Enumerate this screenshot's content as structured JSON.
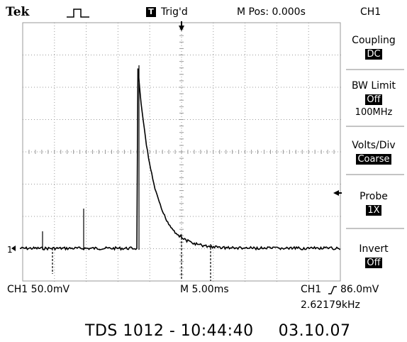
{
  "header": {
    "brand": "Tek",
    "pulse_icon": "single-pulse-icon",
    "trigger_status_icon": "trigger-square-icon",
    "trigger_status_icon_text": "T",
    "trigger_status": "Trig'd",
    "m_pos": "M Pos: 0.000s",
    "channel": "CH1"
  },
  "menu": {
    "coupling_label": "Coupling",
    "coupling_value": "DC",
    "bw_limit_label": "BW Limit",
    "bw_limit_value": "Off",
    "bw_limit_freq": "100MHz",
    "volts_div_label": "Volts/Div",
    "volts_div_value": "Coarse",
    "probe_label": "Probe",
    "probe_value": "1X",
    "invert_label": "Invert",
    "invert_value": "Off"
  },
  "readout": {
    "ch1_scale": "CH1  50.0mV",
    "timebase": "M 5.00ms",
    "trigger": "CH1",
    "trigger_slope_icon": "rising-edge-icon",
    "trigger_level": "86.0mV",
    "frequency": "2.62179kHz",
    "ch1_marker": "1"
  },
  "footer": {
    "model": "TDS 1012",
    "time": "10:44:40",
    "date": "03.10.07"
  },
  "screen": {
    "trace_color": "#000000",
    "grid_color": "#9a9a9a"
  }
}
